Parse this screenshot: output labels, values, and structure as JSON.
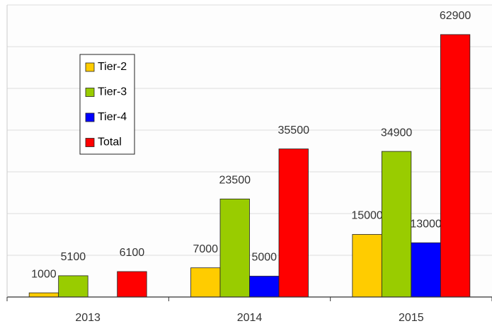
{
  "chart_data": {
    "type": "bar",
    "categories": [
      "2013",
      "2014",
      "2015"
    ],
    "series": [
      {
        "name": "Tier-2",
        "color": "#ffcc00",
        "values": [
          1000,
          7000,
          15000
        ]
      },
      {
        "name": "Tier-3",
        "color": "#99cc00",
        "values": [
          5100,
          23500,
          34900
        ]
      },
      {
        "name": "Tier-4",
        "color": "#0000ff",
        "values": [
          null,
          5000,
          13000
        ]
      },
      {
        "name": "Total",
        "color": "#ff0000",
        "values": [
          6100,
          35500,
          62900
        ]
      }
    ],
    "ylim": [
      0,
      70000
    ],
    "yticks": [
      0,
      10000,
      20000,
      30000,
      40000,
      50000,
      60000,
      70000
    ],
    "grid": true,
    "legend": "upper left"
  }
}
